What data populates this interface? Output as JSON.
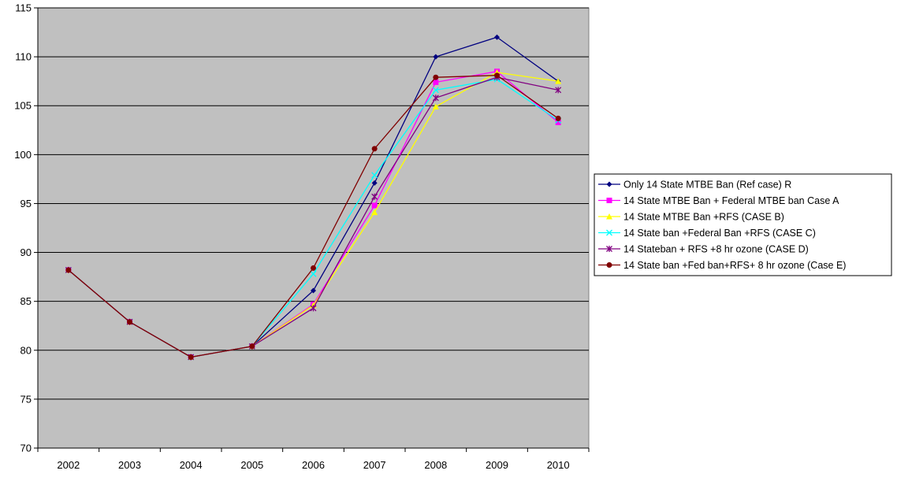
{
  "chart_data": {
    "type": "line",
    "title": "",
    "xlabel": "",
    "ylabel": "",
    "ylim": [
      70,
      115
    ],
    "y_ticks": [
      "70",
      "75",
      "80",
      "85",
      "90",
      "95",
      "100",
      "105",
      "110",
      "115"
    ],
    "categories": [
      "2002",
      "2003",
      "2004",
      "2005",
      "2006",
      "2007",
      "2008",
      "2009",
      "2010"
    ],
    "grid": "horizontal",
    "plot_background": "#c0c0c0",
    "legend_position": "right",
    "series": [
      {
        "name": "Only 14 State MTBE Ban (Ref case) R",
        "color": "#000080",
        "marker": "diamond",
        "values": [
          88.2,
          82.9,
          79.3,
          80.4,
          86.1,
          97.1,
          110.0,
          112.0,
          107.5
        ]
      },
      {
        "name": "14 State MTBE Ban + Federal MTBE ban Case A",
        "color": "#ff00ff",
        "marker": "square",
        "values": [
          88.2,
          82.9,
          79.3,
          80.4,
          84.7,
          94.8,
          107.4,
          108.5,
          103.3
        ]
      },
      {
        "name": "14 State MTBE Ban +RFS (CASE B)",
        "color": "#ffff00",
        "marker": "triangle",
        "values": [
          88.2,
          82.9,
          79.3,
          80.4,
          84.6,
          94.1,
          104.9,
          108.4,
          107.5
        ]
      },
      {
        "name": "14 State ban +Federal Ban +RFS (CASE C)",
        "color": "#00ffff",
        "marker": "x",
        "values": [
          88.2,
          82.9,
          79.3,
          80.4,
          87.8,
          97.9,
          106.6,
          107.7,
          103.5
        ]
      },
      {
        "name": "14 Stateban + RFS +8 hr ozone (CASE D)",
        "color": "#800080",
        "marker": "star",
        "values": [
          88.2,
          82.9,
          79.3,
          80.4,
          84.3,
          95.7,
          105.8,
          107.9,
          106.6
        ]
      },
      {
        "name": "14 State ban +Fed ban+RFS+ 8 hr ozone (Case E)",
        "color": "#800000",
        "marker": "circle",
        "values": [
          88.2,
          82.9,
          79.3,
          80.4,
          88.4,
          100.6,
          107.9,
          108.1,
          103.7
        ]
      }
    ]
  }
}
